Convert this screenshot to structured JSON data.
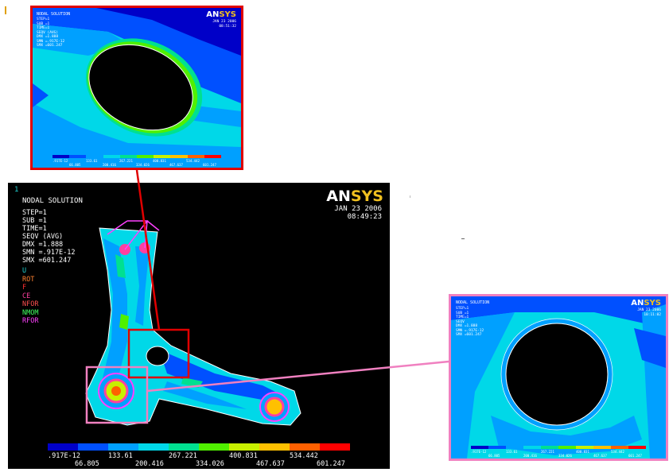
{
  "main": {
    "corner": "1",
    "title": "NODAL SOLUTION",
    "info": [
      "STEP=1",
      "SUB =1",
      "TIME=1",
      "SEQV    (AVG)",
      "DMX =1.888",
      "SMN =.917E-12",
      "SMX =601.247"
    ],
    "symbols": [
      {
        "text": "U",
        "color": "#20d0d0"
      },
      {
        "text": "ROT",
        "color": "#ff8030"
      },
      {
        "text": "F",
        "color": "#ff3030"
      },
      {
        "text": "CE",
        "color": "#ff40a0"
      },
      {
        "text": "NFOR",
        "color": "#ff5050"
      },
      {
        "text": "NMOM",
        "color": "#40ff60"
      },
      {
        "text": "RFOR",
        "color": "#ff40ff"
      }
    ],
    "date": "JAN 23 2006",
    "time": "08:49:23",
    "logo_an": "AN",
    "logo_sys": "SYS",
    "legend_top": [
      ".917E-12",
      "133.61",
      "267.221",
      "400.831",
      "534.442"
    ],
    "legend_bottom": [
      "66.805",
      "200.416",
      "334.026",
      "467.637",
      "601.247"
    ]
  },
  "zoom_top": {
    "title": "NODAL SOLUTION",
    "info": [
      "STEP=1",
      "SUB =1",
      "TIME=1",
      "SEQV    (AVG)",
      "DMX =1.888",
      "SMN =.917E-12",
      "SMX =601.247"
    ],
    "date": "JAN 23 2006",
    "time": "08:51:32",
    "legend_top": [
      ".917E-12",
      "133.61",
      "267.221",
      "400.831",
      "534.442"
    ],
    "legend_bottom": [
      "66.805",
      "200.416",
      "334.026",
      "467.637",
      "601.247"
    ]
  },
  "zoom_right": {
    "title": "NODAL SOLUTION",
    "info": [
      "STEP=1",
      "SUB =1",
      "TIME=1",
      "SEQV",
      "DMX =1.888",
      "SMN =.917E-12",
      "SMX =601.247"
    ],
    "date": "JAN 23 2006",
    "time": "10:11:02",
    "legend_top": [
      ".917E-12",
      "133.61",
      "267.221",
      "400.831",
      "534.442"
    ],
    "legend_bottom": [
      "66.805",
      "200.416",
      "334.026",
      "467.637",
      "601.247"
    ]
  },
  "colors": {
    "contour": [
      "#0000c8",
      "#0050ff",
      "#00a0ff",
      "#00d8e8",
      "#00e090",
      "#50f000",
      "#c8f000",
      "#ffc000",
      "#ff6000",
      "#ff0000"
    ],
    "zoom_top_border": "#e00000",
    "zoom_right_border": "#f080c0"
  },
  "icons": {
    "callout_box_top": "red-selection-box",
    "callout_box_right": "pink-selection-box"
  }
}
